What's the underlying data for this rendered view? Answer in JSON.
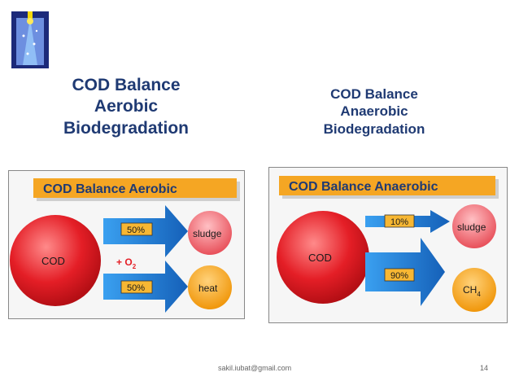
{
  "left_heading": [
    "COD Balance",
    "Aerobic",
    "Biodegradation"
  ],
  "right_heading": [
    "COD Balance",
    "Anaerobic",
    "Biodegradation"
  ],
  "aerobic": {
    "banner": "COD Balance Aerobic",
    "source": "COD",
    "oxygen": "+ O",
    "oxygen_sub": "2",
    "arrow_top": "50%",
    "arrow_bottom": "50%",
    "out_top": "sludge",
    "out_bottom": "heat"
  },
  "anaerobic": {
    "banner": "COD Balance Anaerobic",
    "source": "COD",
    "arrow_top": "10%",
    "arrow_bottom": "90%",
    "out_top": "sludge",
    "out_bottom": "CH",
    "out_bottom_sub": "4"
  },
  "footer": {
    "email": "sakil.iubat@gmail.com",
    "page": "14"
  },
  "colors": {
    "heading": "#1f3a73",
    "banner": "#f5a623",
    "cod": "#e41e26",
    "arrow": "#1e7fd0",
    "label_box": "#f7b733"
  }
}
